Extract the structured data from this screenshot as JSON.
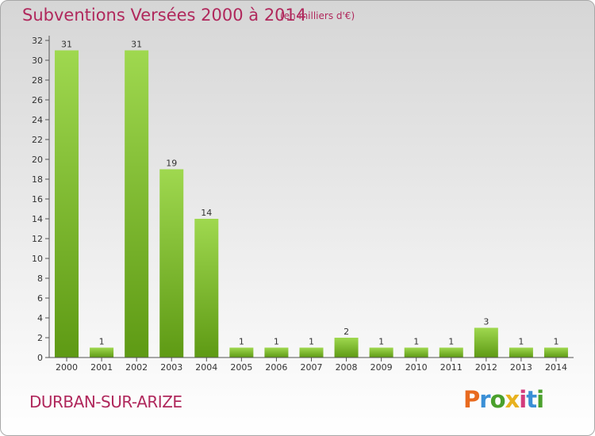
{
  "header": {
    "title": "Subventions Versées 2000 à 2014",
    "subtitle": "(en milliers d'€)"
  },
  "footer": {
    "town": "DURBAN-SUR-ARIZE",
    "logo_text": "Proxiti"
  },
  "colors": {
    "title": "#b0285c",
    "bar_light": "#9fd84f",
    "bar_dark": "#5e9a14"
  },
  "chart_data": {
    "type": "bar",
    "categories": [
      "2000",
      "2001",
      "2002",
      "2003",
      "2004",
      "2005",
      "2006",
      "2007",
      "2008",
      "2009",
      "2010",
      "2011",
      "2012",
      "2013",
      "2014"
    ],
    "values": [
      31,
      1,
      31,
      19,
      14,
      1,
      1,
      1,
      2,
      1,
      1,
      1,
      3,
      1,
      1
    ],
    "ylim": [
      0,
      32
    ],
    "yticks": [
      0,
      2,
      4,
      6,
      8,
      10,
      12,
      14,
      16,
      18,
      20,
      22,
      24,
      26,
      28,
      30,
      32
    ],
    "grid": false,
    "legend": "none"
  }
}
